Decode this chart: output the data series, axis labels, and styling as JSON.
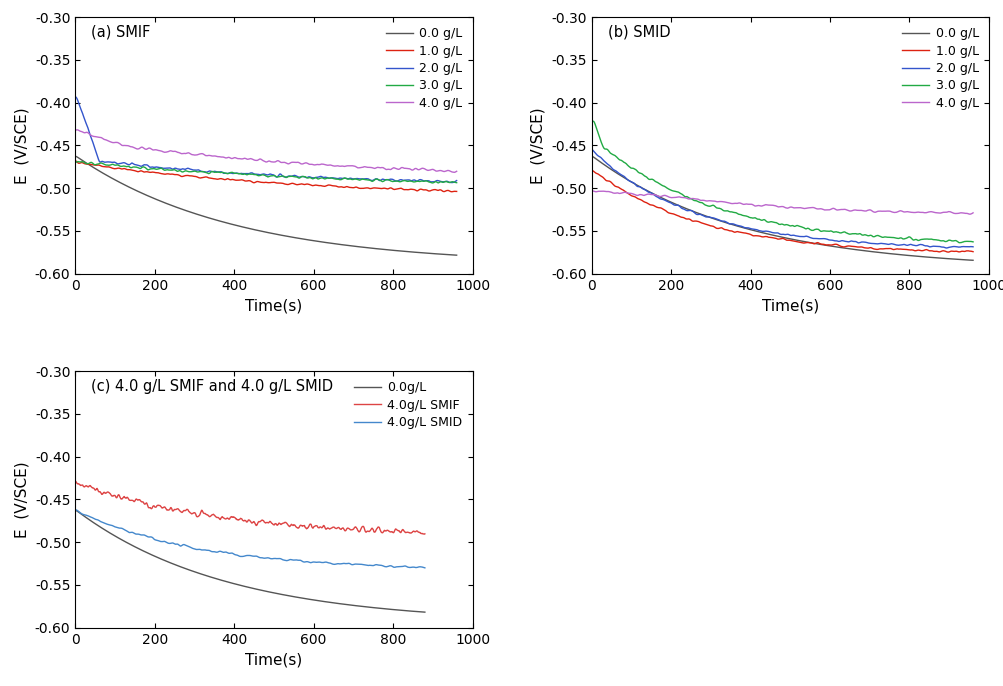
{
  "title_a": "(a) SMIF",
  "title_b": "(b) SMID",
  "title_c": "(c) 4.0 g/L SMIF and 4.0 g/L SMID",
  "xlabel": "Time(s)",
  "ylabel": "E  (V/SCE)",
  "xlim_ab": [
    0,
    1000
  ],
  "xlim_c": [
    0,
    1000
  ],
  "ylim": [
    -0.6,
    -0.3
  ],
  "yticks": [
    -0.6,
    -0.55,
    -0.5,
    -0.45,
    -0.4,
    -0.35,
    -0.3
  ],
  "xticks_ab": [
    0,
    200,
    400,
    600,
    800,
    1000
  ],
  "xticks_c": [
    0,
    200,
    400,
    600,
    800,
    1000
  ],
  "colors_ab": {
    "0.0": "#555555",
    "1.0": "#dd2211",
    "2.0": "#3355cc",
    "3.0": "#22aa44",
    "4.0": "#bb66cc"
  },
  "legend_labels_ab": [
    "0.0 g/L",
    "1.0 g/L",
    "2.0 g/L",
    "3.0 g/L",
    "4.0 g/L"
  ],
  "legend_labels_c": [
    "0.0g/L",
    "4.0g/L SMIF",
    "4.0g/L SMID"
  ],
  "colors_c": {
    "0.0": "#555555",
    "smif": "#dd4444",
    "smid": "#4488cc"
  },
  "background_color": "#ffffff",
  "line_width": 1.0
}
